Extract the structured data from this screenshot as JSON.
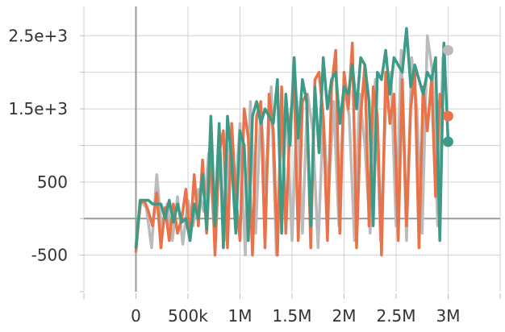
{
  "chart_data": {
    "type": "line",
    "title": "",
    "xlabel": "",
    "ylabel": "",
    "xlim": [
      -500000,
      3500000
    ],
    "ylim": [
      -1000,
      2900
    ],
    "x_ticks": [
      {
        "value": 0,
        "label": "0"
      },
      {
        "value": 500000,
        "label": "500k"
      },
      {
        "value": 1000000,
        "label": "1M"
      },
      {
        "value": 1500000,
        "label": "1.5M"
      },
      {
        "value": 2000000,
        "label": "2M"
      },
      {
        "value": 2500000,
        "label": "2.5M"
      },
      {
        "value": 3000000,
        "label": "3M"
      }
    ],
    "y_ticks": [
      {
        "value": -500,
        "label": "-500"
      },
      {
        "value": 500,
        "label": "500"
      },
      {
        "value": 1500,
        "label": "1.5e+3"
      },
      {
        "value": 2500,
        "label": "2.5e+3"
      }
    ],
    "grid": true,
    "series": [
      {
        "color": "#bbbbbb",
        "x": [
          0,
          50000,
          100000,
          150000,
          200000,
          250000,
          300000,
          350000,
          400000,
          450000,
          500000,
          550000,
          600000,
          650000,
          700000,
          750000,
          800000,
          850000,
          900000,
          950000,
          1000000,
          1050000,
          1100000,
          1150000,
          1200000,
          1250000,
          1300000,
          1350000,
          1400000,
          1450000,
          1500000,
          1550000,
          1600000,
          1650000,
          1700000,
          1750000,
          1800000,
          1850000,
          1900000,
          1950000,
          2000000,
          2050000,
          2100000,
          2150000,
          2200000,
          2250000,
          2300000,
          2350000,
          2400000,
          2450000,
          2500000,
          2550000,
          2600000,
          2650000,
          2700000,
          2750000,
          2800000,
          2850000,
          2900000,
          2950000,
          3000000
        ],
        "y": [
          -350,
          250,
          150,
          -400,
          600,
          -200,
          200,
          -300,
          300,
          -350,
          250,
          -100,
          400,
          100,
          900,
          -100,
          1200,
          -300,
          1000,
          200,
          1300,
          -500,
          1600,
          -200,
          1500,
          400,
          1800,
          -500,
          1200,
          1400,
          -300,
          1600,
          -200,
          1700,
          1200,
          -400,
          1400,
          300,
          1600,
          -100,
          1800,
          1400,
          -300,
          1700,
          1000,
          -200,
          1900,
          -300,
          1500,
          2000,
          -100,
          2300,
          -300,
          2200,
          1500,
          -200,
          2500,
          2000,
          -100,
          2200,
          2300
        ]
      },
      {
        "color": "#e8734a",
        "x": [
          0,
          40000,
          80000,
          120000,
          160000,
          200000,
          240000,
          280000,
          320000,
          360000,
          400000,
          440000,
          480000,
          520000,
          560000,
          600000,
          640000,
          680000,
          720000,
          760000,
          800000,
          840000,
          880000,
          920000,
          960000,
          1000000,
          1040000,
          1080000,
          1120000,
          1160000,
          1200000,
          1240000,
          1280000,
          1320000,
          1360000,
          1400000,
          1440000,
          1480000,
          1520000,
          1560000,
          1600000,
          1640000,
          1680000,
          1720000,
          1760000,
          1800000,
          1840000,
          1880000,
          1920000,
          1960000,
          2000000,
          2040000,
          2080000,
          2120000,
          2160000,
          2200000,
          2240000,
          2280000,
          2320000,
          2360000,
          2400000,
          2440000,
          2480000,
          2520000,
          2560000,
          2600000,
          2640000,
          2680000,
          2720000,
          2760000,
          2800000,
          2840000,
          2880000,
          2920000,
          2960000,
          3000000
        ],
        "y": [
          -450,
          200,
          250,
          100,
          -100,
          350,
          -400,
          150,
          -300,
          200,
          -200,
          0,
          400,
          -300,
          600,
          -100,
          800,
          -200,
          1000,
          -500,
          900,
          1200,
          -400,
          1300,
          300,
          -300,
          1500,
          1100,
          -500,
          1400,
          1600,
          -400,
          1700,
          1200,
          -500,
          1800,
          -200,
          1300,
          1900,
          -300,
          1600,
          1700,
          -400,
          1900,
          2000,
          1400,
          -300,
          1800,
          2300,
          -200,
          2000,
          1500,
          2400,
          -400,
          1400,
          2100,
          -100,
          1800,
          1400,
          -500,
          2000,
          1300,
          1700,
          -300,
          1900,
          -100,
          1500,
          2000,
          -400,
          1800,
          1200,
          1900,
          300,
          1700,
          1400,
          1400
        ]
      },
      {
        "color": "#3d9a86",
        "x": [
          0,
          40000,
          80000,
          120000,
          160000,
          200000,
          240000,
          280000,
          320000,
          360000,
          400000,
          440000,
          480000,
          520000,
          560000,
          600000,
          640000,
          680000,
          720000,
          760000,
          800000,
          840000,
          880000,
          920000,
          960000,
          1000000,
          1040000,
          1080000,
          1120000,
          1160000,
          1200000,
          1240000,
          1280000,
          1320000,
          1360000,
          1400000,
          1440000,
          1480000,
          1520000,
          1560000,
          1600000,
          1640000,
          1680000,
          1720000,
          1760000,
          1800000,
          1840000,
          1880000,
          1920000,
          1960000,
          2000000,
          2040000,
          2080000,
          2120000,
          2160000,
          2200000,
          2240000,
          2280000,
          2320000,
          2360000,
          2400000,
          2440000,
          2480000,
          2520000,
          2560000,
          2600000,
          2640000,
          2680000,
          2720000,
          2760000,
          2800000,
          2840000,
          2880000,
          2920000,
          2960000,
          3000000
        ],
        "y": [
          -400,
          250,
          250,
          250,
          200,
          200,
          200,
          0,
          250,
          -50,
          200,
          -50,
          0,
          -300,
          200,
          0,
          600,
          -150,
          1400,
          -100,
          1300,
          -400,
          1400,
          800,
          -200,
          1200,
          1000,
          -300,
          1400,
          1600,
          1300,
          1500,
          1400,
          1300,
          1900,
          -200,
          1700,
          1000,
          2200,
          1100,
          1900,
          1600,
          -100,
          1800,
          900,
          2200,
          1500,
          1900,
          2000,
          1300,
          1800,
          1700,
          2100,
          1500,
          2200,
          2100,
          1600,
          -100,
          2000,
          1900,
          2300,
          1700,
          2200,
          2100,
          2000,
          2600,
          1800,
          2100,
          1900,
          1700,
          2000,
          1900,
          2200,
          -300,
          2400,
          1050
        ]
      }
    ],
    "end_markers": [
      {
        "color": "#bbbbbb",
        "x": 3000000,
        "y": 2300
      },
      {
        "color": "#e8734a",
        "x": 3000000,
        "y": 1400
      },
      {
        "color": "#3d9a86",
        "x": 3000000,
        "y": 1050
      }
    ]
  }
}
